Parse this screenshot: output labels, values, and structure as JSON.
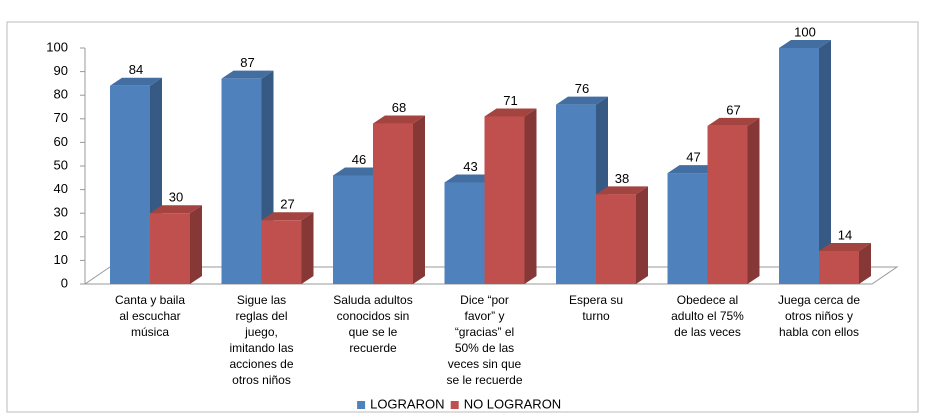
{
  "chart_data": {
    "type": "bar3d",
    "categories": [
      "Canta y baila\nal escuchar\nmúsica",
      "Sigue las\nreglas del\njuego,\nimitando las\nacciones de\notros niños",
      "Saluda adultos\nconocidos sin\nque se le\nrecuerde",
      "Dice “por\nfavor” y\n“gracias” el\n50% de las\nveces sin que\nse le recuerde",
      "Espera su\nturno",
      "Obedece al\nadulto el 75%\nde las veces",
      "Juega cerca de\notros niños y\nhabla con ellos"
    ],
    "series": [
      {
        "name": "LOGRARON",
        "color": "#4f81bd",
        "values": [
          84,
          87,
          46,
          43,
          76,
          47,
          100
        ]
      },
      {
        "name": "NO LOGRARON",
        "color": "#c0504d",
        "values": [
          30,
          27,
          68,
          71,
          38,
          67,
          14
        ]
      }
    ],
    "ylim": [
      0,
      100
    ],
    "yticks": [
      0,
      10,
      20,
      30,
      40,
      50,
      60,
      70,
      80,
      90,
      100
    ],
    "legend": "bottom"
  }
}
